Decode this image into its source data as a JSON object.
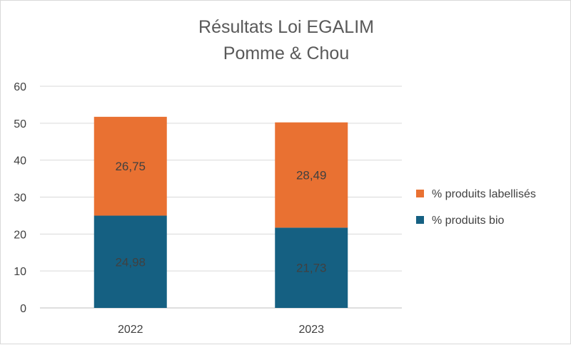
{
  "chart_data": {
    "type": "bar",
    "stacked": true,
    "title": [
      "Résultats Loi EGALIM",
      "Pomme & Chou"
    ],
    "categories": [
      "2022",
      "2023"
    ],
    "series": [
      {
        "name": "% produits bio",
        "values": [
          24.98,
          21.73
        ],
        "labels": [
          "24,98",
          "21,73"
        ],
        "color": "#156082"
      },
      {
        "name": "% produits labellisés",
        "values": [
          26.75,
          28.49
        ],
        "labels": [
          "26,75",
          "28,49"
        ],
        "color": "#E97132"
      }
    ],
    "legend_order": [
      1,
      0
    ],
    "yticks": [
      "0",
      "10",
      "20",
      "30",
      "40",
      "50",
      "60"
    ],
    "ylim": [
      0,
      60
    ],
    "grid": true,
    "legend_position": "right"
  }
}
